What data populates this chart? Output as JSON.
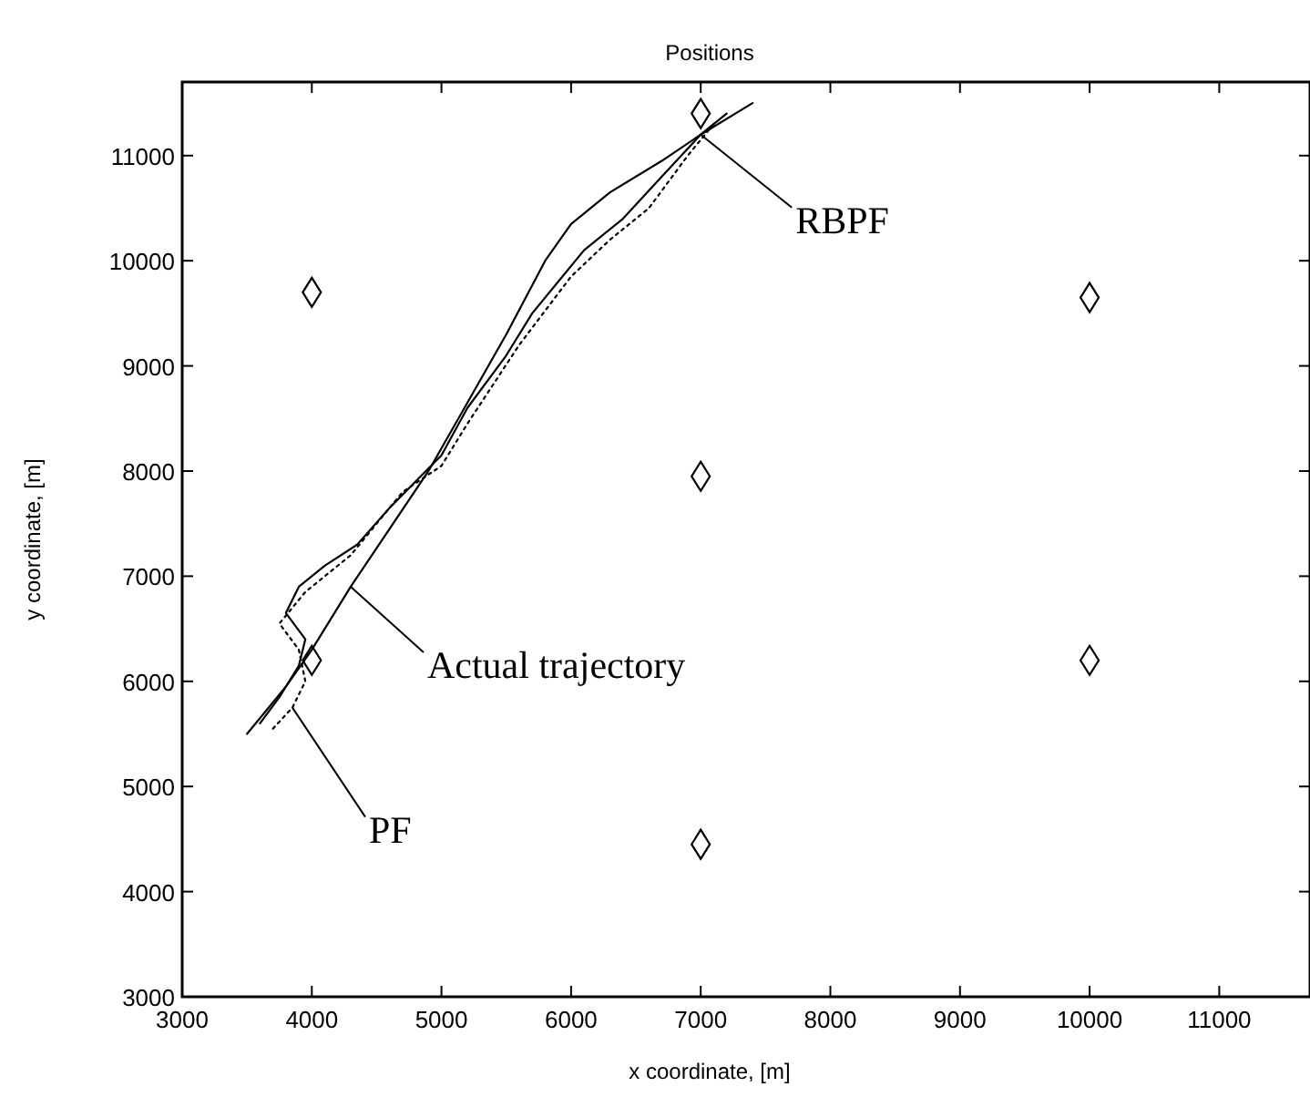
{
  "chart_data": {
    "type": "line",
    "title": "Positions",
    "xlabel": "x coordinate, [m]",
    "ylabel": "y coordinate, [m]",
    "xlim": [
      3000,
      11700
    ],
    "ylim": [
      3000,
      11700
    ],
    "xticks": [
      3000,
      4000,
      5000,
      6000,
      7000,
      8000,
      9000,
      10000,
      11000
    ],
    "yticks": [
      3000,
      4000,
      5000,
      6000,
      7000,
      8000,
      9000,
      10000,
      11000
    ],
    "grid": false,
    "series": [
      {
        "name": "Actual trajectory",
        "color": "#000000",
        "line_style": "solid",
        "marker": "none",
        "x": [
          3500,
          3800,
          4000,
          4300,
          4600,
          4900,
          5200,
          5500,
          5800,
          6000,
          6300,
          6700,
          7000,
          7400
        ],
        "values": [
          5500,
          5950,
          6300,
          6900,
          7450,
          8000,
          8650,
          9300,
          10000,
          10350,
          10650,
          10950,
          11200,
          11500
        ]
      },
      {
        "name": "RBPF",
        "color": "#000000",
        "line_style": "solid",
        "marker": "none",
        "x": [
          3600,
          3750,
          3900,
          3950,
          3800,
          3900,
          4100,
          4350,
          4600,
          4800,
          5000,
          5200,
          5500,
          5700,
          5900,
          6100,
          6400,
          6700,
          7000,
          7200
        ],
        "values": [
          5600,
          5850,
          6150,
          6400,
          6650,
          6900,
          7100,
          7300,
          7650,
          7900,
          8150,
          8600,
          9100,
          9500,
          9800,
          10100,
          10400,
          10800,
          11200,
          11400
        ]
      },
      {
        "name": "PF",
        "color": "#000000",
        "line_style": "dotted",
        "marker": "none",
        "x": [
          3700,
          3850,
          3950,
          3900,
          3750,
          3950,
          4300,
          4700,
          5000,
          5200,
          5600,
          6000,
          6300,
          6600,
          6900,
          7100
        ],
        "values": [
          5550,
          5750,
          6000,
          6300,
          6550,
          6850,
          7200,
          7800,
          8050,
          8450,
          9200,
          9850,
          10200,
          10500,
          11000,
          11300
        ]
      },
      {
        "type": "scatter",
        "color": "#000000",
        "marker": "diamond",
        "x": [
          4000,
          7000,
          10000,
          7000,
          4000,
          10000,
          7000
        ],
        "values": [
          9700,
          7950,
          9650,
          11400,
          6200,
          6200,
          4450
        ]
      }
    ]
  }
}
